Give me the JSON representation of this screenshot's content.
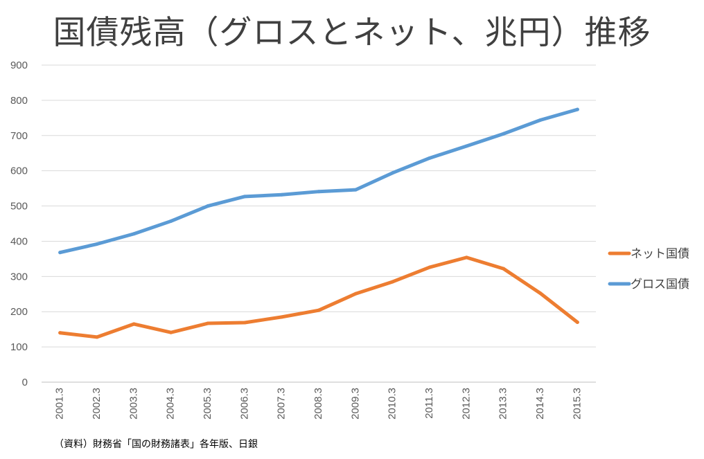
{
  "chart_data": {
    "type": "line",
    "title": "国債残高（グロスとネット、兆円）推移",
    "xlabel": "",
    "ylabel": "",
    "ylim": [
      0,
      900
    ],
    "yticks": [
      "0",
      "100",
      "200",
      "300",
      "400",
      "500",
      "600",
      "700",
      "800",
      "900"
    ],
    "categories": [
      "2001.3",
      "2002.3",
      "2003.3",
      "2004.3",
      "2005.3",
      "2006.3",
      "2007.3",
      "2008.3",
      "2009.3",
      "2010.3",
      "2011.3",
      "2012.3",
      "2013.3",
      "2014.3",
      "2015.3"
    ],
    "grid": true,
    "legend_position": "right",
    "series": [
      {
        "name": "ネット国債",
        "color": "#ED7D31",
        "values": [
          140,
          128,
          165,
          141,
          167,
          169,
          185,
          204,
          251,
          285,
          326,
          354,
          322,
          252,
          170
        ]
      },
      {
        "name": "グロス国債",
        "color": "#5B9BD5",
        "values": [
          368,
          392,
          421,
          457,
          500,
          527,
          532,
          541,
          546,
          594,
          636,
          670,
          705,
          744,
          774
        ]
      }
    ]
  },
  "source_note": "（資料）財務省「国の財務諸表」各年版、日銀"
}
